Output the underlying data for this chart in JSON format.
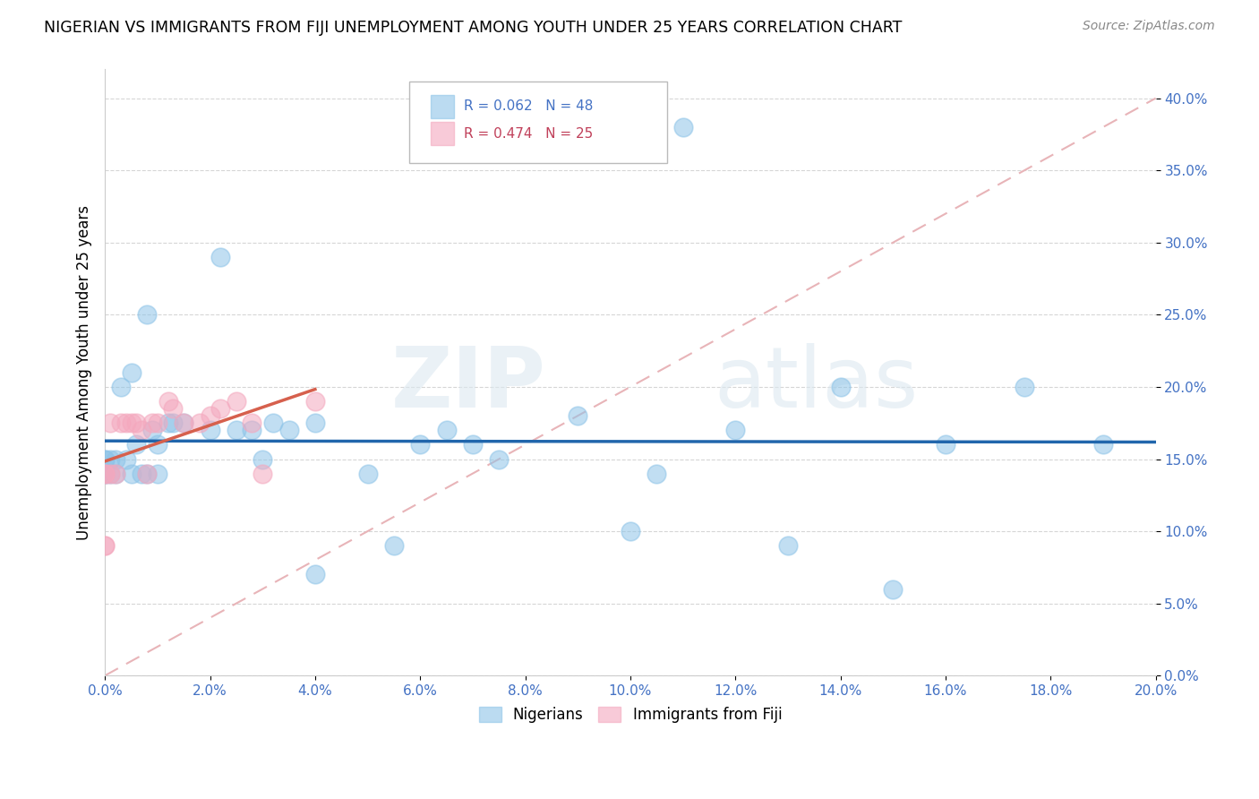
{
  "title": "NIGERIAN VS IMMIGRANTS FROM FIJI UNEMPLOYMENT AMONG YOUTH UNDER 25 YEARS CORRELATION CHART",
  "source": "Source: ZipAtlas.com",
  "ylabel": "Unemployment Among Youth under 25 years",
  "xlim": [
    0.0,
    0.2
  ],
  "ylim": [
    0.0,
    0.42
  ],
  "nigerian_R": 0.062,
  "nigerian_N": 48,
  "fiji_R": 0.474,
  "fiji_N": 25,
  "nigerian_color": "#8ec4e8",
  "fiji_color": "#f4a8be",
  "nigerian_line_color": "#2166ac",
  "fiji_line_color": "#d6604d",
  "refline_color": "#e8b4b8",
  "grid_color": "#cccccc",
  "tick_color": "#4472c4",
  "nigerian_x": [
    0.0,
    0.0,
    0.0,
    0.001,
    0.001,
    0.002,
    0.002,
    0.003,
    0.004,
    0.005,
    0.005,
    0.006,
    0.007,
    0.008,
    0.008,
    0.009,
    0.01,
    0.01,
    0.012,
    0.013,
    0.015,
    0.02,
    0.022,
    0.025,
    0.028,
    0.03,
    0.032,
    0.035,
    0.04,
    0.04,
    0.05,
    0.055,
    0.06,
    0.065,
    0.07,
    0.075,
    0.09,
    0.1,
    0.105,
    0.11,
    0.12,
    0.13,
    0.14,
    0.15,
    0.16,
    0.175,
    0.19,
    0.0
  ],
  "nigerian_y": [
    0.14,
    0.14,
    0.15,
    0.14,
    0.15,
    0.14,
    0.15,
    0.2,
    0.15,
    0.14,
    0.21,
    0.16,
    0.14,
    0.14,
    0.25,
    0.17,
    0.14,
    0.16,
    0.175,
    0.175,
    0.175,
    0.17,
    0.29,
    0.17,
    0.17,
    0.15,
    0.175,
    0.17,
    0.175,
    0.07,
    0.14,
    0.09,
    0.16,
    0.17,
    0.16,
    0.15,
    0.18,
    0.1,
    0.14,
    0.38,
    0.17,
    0.09,
    0.2,
    0.06,
    0.16,
    0.2,
    0.16,
    0.15
  ],
  "fiji_x": [
    0.0,
    0.0,
    0.0,
    0.0,
    0.001,
    0.001,
    0.002,
    0.003,
    0.004,
    0.005,
    0.006,
    0.007,
    0.008,
    0.009,
    0.01,
    0.012,
    0.013,
    0.015,
    0.018,
    0.02,
    0.022,
    0.025,
    0.028,
    0.03,
    0.04
  ],
  "fiji_y": [
    0.09,
    0.09,
    0.14,
    0.14,
    0.14,
    0.175,
    0.14,
    0.175,
    0.175,
    0.175,
    0.175,
    0.17,
    0.14,
    0.175,
    0.175,
    0.19,
    0.185,
    0.175,
    0.175,
    0.18,
    0.185,
    0.19,
    0.175,
    0.14,
    0.19
  ]
}
